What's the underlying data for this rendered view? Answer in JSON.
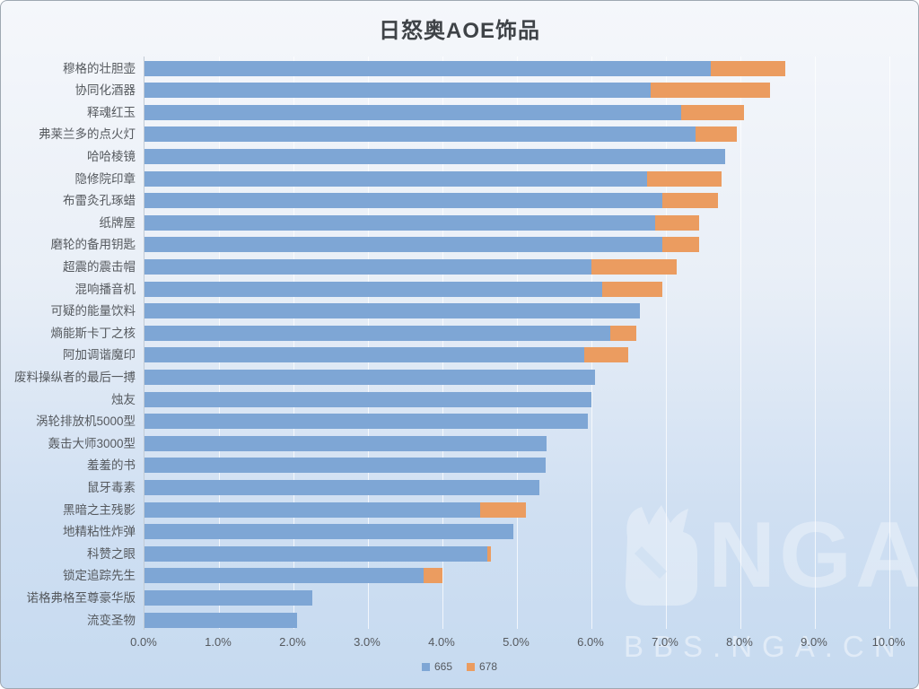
{
  "title": "日怒奥AOE饰品",
  "watermark": {
    "nga": "NGA",
    "bbs": "BBS.NGA.CN"
  },
  "chart_data": {
    "type": "bar",
    "orientation": "horizontal",
    "stacked": true,
    "title": "日怒奥AOE饰品",
    "categories": [
      "穆格的壮胆壶",
      "协同化酒器",
      "释魂红玉",
      "弗莱兰多的点火灯",
      "哈哈棱镜",
      "隐修院印章",
      "布雷灸孔琢蜡",
      "纸牌屋",
      "磨轮的备用钥匙",
      "超震的震击帽",
      "混响播音机",
      "可疑的能量饮料",
      "熵能斯卡丁之核",
      "阿加调谐魔印",
      "废料操纵者的最后一搏",
      "烛友",
      "涡轮排放机5000型",
      "轰击大师3000型",
      "羞羞的书",
      "鼠牙毒素",
      "黑暗之主残影",
      "地精粘性炸弹",
      "科赞之眼",
      "锁定追踪先生",
      "诺格弗格至尊豪华版",
      "流变圣物"
    ],
    "series": [
      {
        "name": "665",
        "color": "#7EA6D5",
        "values": [
          7.6,
          6.8,
          7.2,
          7.4,
          7.8,
          6.75,
          6.95,
          6.85,
          6.95,
          6.0,
          6.15,
          6.65,
          6.25,
          5.9,
          6.05,
          6.0,
          5.95,
          5.4,
          5.38,
          5.3,
          4.5,
          4.95,
          4.6,
          3.75,
          2.25,
          2.05
        ]
      },
      {
        "name": "678",
        "color": "#EB9C60",
        "values": [
          1.0,
          1.6,
          0.85,
          0.55,
          0,
          1.0,
          0.75,
          0.6,
          0.5,
          1.15,
          0.8,
          0,
          0.35,
          0.6,
          0,
          0,
          0,
          0,
          0,
          0,
          0.62,
          0,
          0.05,
          0.25,
          0,
          0
        ]
      }
    ],
    "x_axis": {
      "min": 0,
      "max": 10,
      "unit": "%",
      "ticks": [
        "0.0%",
        "1.0%",
        "2.0%",
        "3.0%",
        "4.0%",
        "5.0%",
        "6.0%",
        "7.0%",
        "8.0%",
        "9.0%",
        "10.0%"
      ]
    },
    "grid": true,
    "legend_position": "bottom"
  }
}
